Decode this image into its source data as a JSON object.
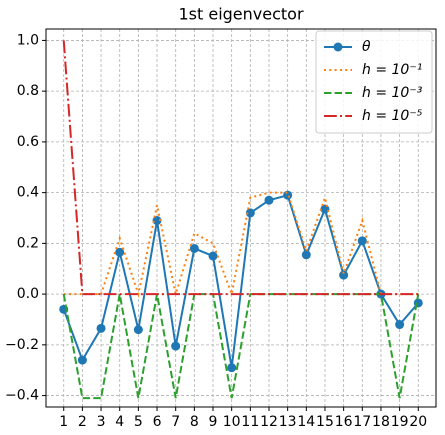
{
  "chart_data": {
    "type": "line",
    "title": "1st eigenvector",
    "x": [
      1,
      2,
      3,
      4,
      5,
      6,
      7,
      8,
      9,
      10,
      11,
      12,
      13,
      14,
      15,
      16,
      17,
      18,
      19,
      20
    ],
    "series": [
      {
        "name": "θ",
        "color": "#1f77b4",
        "linestyle": "solid",
        "marker": "circle",
        "values": [
          -0.06,
          -0.26,
          -0.135,
          0.165,
          -0.14,
          0.29,
          -0.205,
          0.18,
          0.15,
          -0.29,
          0.32,
          0.37,
          0.39,
          0.155,
          0.335,
          0.075,
          0.21,
          0.0,
          -0.12,
          -0.035
        ]
      },
      {
        "name": "h = 10⁻¹",
        "color": "#ff7f0e",
        "linestyle": "dotted",
        "values": [
          0,
          0,
          0,
          0.22,
          0,
          0.35,
          0,
          0.24,
          0.2,
          0,
          0.38,
          0.4,
          0.4,
          0.17,
          0.38,
          0.08,
          0.29,
          0,
          0,
          0
        ]
      },
      {
        "name": "h = 10⁻³",
        "color": "#2ca02c",
        "linestyle": "dashed",
        "values": [
          0,
          -0.41,
          -0.41,
          0,
          -0.41,
          0,
          -0.41,
          0,
          0,
          -0.41,
          0,
          0,
          0,
          0,
          0,
          0,
          0,
          0,
          -0.41,
          0
        ]
      },
      {
        "name": "h = 10⁻⁵",
        "color": "#d62728",
        "linestyle": "dashdot",
        "values": [
          1.0,
          0,
          0,
          0,
          0,
          0,
          0,
          0,
          0,
          0,
          0,
          0,
          0,
          0,
          0,
          0,
          0,
          0,
          0,
          0
        ]
      }
    ],
    "xlim": [
      0.05,
      20.95
    ],
    "xticks": [
      1,
      2,
      3,
      4,
      5,
      6,
      7,
      8,
      9,
      10,
      11,
      12,
      13,
      14,
      15,
      16,
      17,
      18,
      19,
      20
    ],
    "ylim": [
      -0.445,
      1.045
    ],
    "yticks": [
      {
        "value": -0.4,
        "label": "−0.4"
      },
      {
        "value": -0.2,
        "label": "−0.2"
      },
      {
        "value": 0,
        "label": "0.0"
      },
      0.2,
      0.4,
      0.6,
      0.8,
      {
        "value": 1.0,
        "label": "1.0"
      }
    ],
    "grid": true,
    "legend": "upper right"
  }
}
